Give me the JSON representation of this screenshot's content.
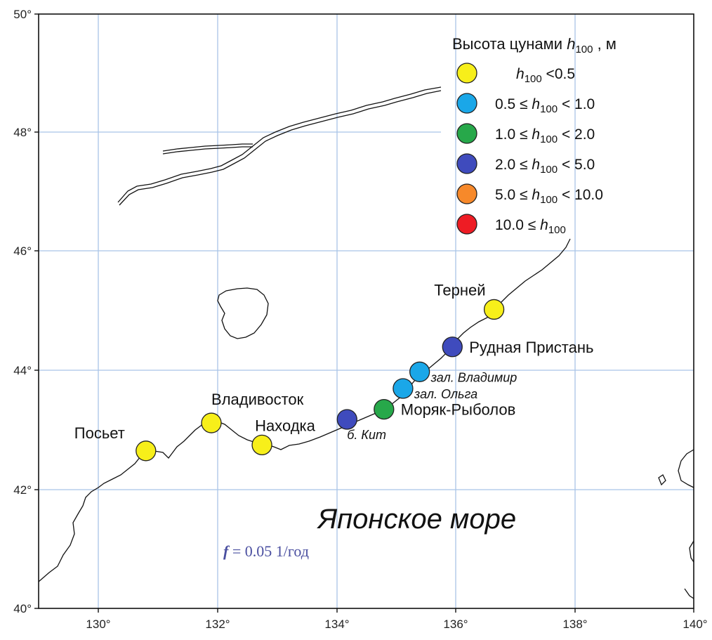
{
  "map": {
    "sea_label": "Японское море",
    "frequency": {
      "f_symbol": "f",
      "f_value": " = 0.05 1/год"
    },
    "lon_ticks": [
      "130°",
      "132°",
      "134°",
      "136°",
      "138°",
      "140°"
    ],
    "lat_ticks": [
      "40°",
      "42°",
      "44°",
      "46°",
      "48°",
      "50°"
    ]
  },
  "legend": {
    "title_prefix": "Высота цунами ",
    "title_h": "h",
    "title_sub": "100",
    "title_unit": " , м",
    "items": [
      {
        "color": "#f7ef1a",
        "pre": "",
        "h": "h",
        "sub": "100",
        "post": " <0.5"
      },
      {
        "color": "#1aa7e8",
        "pre": "0.5 ≤ ",
        "h": "h",
        "sub": "100",
        "post": " < 1.0"
      },
      {
        "color": "#27a84a",
        "pre": "1.0 ≤ ",
        "h": "h",
        "sub": "100",
        "post": " < 2.0"
      },
      {
        "color": "#3f4bbd",
        "pre": "2.0 ≤ ",
        "h": "h",
        "sub": "100",
        "post": " < 5.0"
      },
      {
        "color": "#f7892a",
        "pre": "5.0 ≤ ",
        "h": "h",
        "sub": "100",
        "post": " < 10.0"
      },
      {
        "color": "#ee1c24",
        "pre": "10.0 ≤ ",
        "h": "h",
        "sub": "100",
        "post": ""
      }
    ]
  },
  "stations": [
    {
      "name": "Посьет",
      "lon": 130.8,
      "lat": 42.65,
      "color": "#f7ef1a",
      "kind": "city"
    },
    {
      "name": "Владивосток",
      "lon": 131.9,
      "lat": 43.12,
      "color": "#f7ef1a",
      "kind": "city"
    },
    {
      "name": "Находка",
      "lon": 132.75,
      "lat": 42.75,
      "color": "#f7ef1a",
      "kind": "city"
    },
    {
      "name": "б. Кит",
      "lon": 134.18,
      "lat": 43.18,
      "color": "#3f4bbd",
      "kind": "bay"
    },
    {
      "name": "Моряк-Рыболов",
      "lon": 134.8,
      "lat": 43.35,
      "color": "#27a84a",
      "kind": "city"
    },
    {
      "name": "зал. Ольга",
      "lon": 135.12,
      "lat": 43.7,
      "color": "#1aa7e8",
      "kind": "bay"
    },
    {
      "name": "зал. Владимир",
      "lon": 135.4,
      "lat": 43.98,
      "color": "#1aa7e8",
      "kind": "bay"
    },
    {
      "name": "Рудная Пристань",
      "lon": 135.95,
      "lat": 44.4,
      "color": "#3f4bbd",
      "kind": "city"
    },
    {
      "name": "Терней",
      "lon": 136.65,
      "lat": 45.03,
      "color": "#f7ef1a",
      "kind": "city"
    }
  ]
}
